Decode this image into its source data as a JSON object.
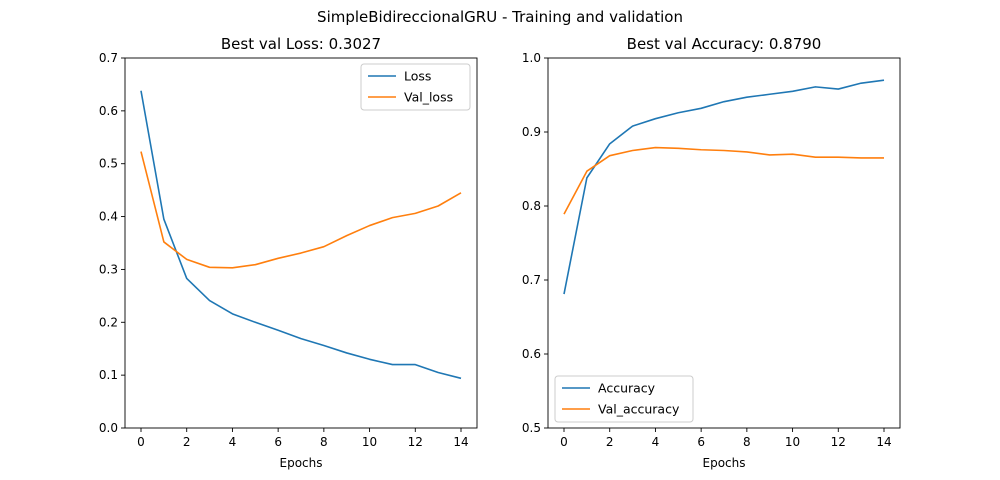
{
  "suptitle": "SimpleBidireccionalGRU - Training and validation",
  "colors": {
    "blue": "#1f77b4",
    "orange": "#ff7f0e"
  },
  "chart_data": [
    {
      "type": "line",
      "title": "Best val Loss: 0.3027",
      "xlabel": "Epochs",
      "ylabel": "",
      "xlim": [
        -0.7,
        14.7
      ],
      "ylim": [
        0.0,
        0.7
      ],
      "xticks": [
        0,
        2,
        4,
        6,
        8,
        10,
        12,
        14
      ],
      "yticks": [
        0.0,
        0.1,
        0.2,
        0.3,
        0.4,
        0.5,
        0.6,
        0.7
      ],
      "ytick_decimals": 1,
      "grid": false,
      "legend_position": "upper right",
      "x": [
        0,
        1,
        2,
        3,
        4,
        5,
        6,
        7,
        8,
        9,
        10,
        11,
        12,
        13,
        14
      ],
      "series": [
        {
          "name": "Loss",
          "color": "#1f77b4",
          "values": [
            0.638,
            0.395,
            0.283,
            0.241,
            0.216,
            0.2,
            0.185,
            0.169,
            0.156,
            0.142,
            0.13,
            0.12,
            0.12,
            0.105,
            0.094
          ]
        },
        {
          "name": "Val_loss",
          "color": "#ff7f0e",
          "values": [
            0.523,
            0.352,
            0.319,
            0.304,
            0.303,
            0.309,
            0.321,
            0.331,
            0.343,
            0.364,
            0.383,
            0.398,
            0.406,
            0.42,
            0.445
          ]
        }
      ]
    },
    {
      "type": "line",
      "title": "Best val Accuracy: 0.8790",
      "xlabel": "Epochs",
      "ylabel": "",
      "xlim": [
        -0.7,
        14.7
      ],
      "ylim": [
        0.5,
        1.0
      ],
      "xticks": [
        0,
        2,
        4,
        6,
        8,
        10,
        12,
        14
      ],
      "yticks": [
        0.5,
        0.6,
        0.7,
        0.8,
        0.9,
        1.0
      ],
      "ytick_decimals": 1,
      "grid": false,
      "legend_position": "lower left",
      "x": [
        0,
        1,
        2,
        3,
        4,
        5,
        6,
        7,
        8,
        9,
        10,
        11,
        12,
        13,
        14
      ],
      "series": [
        {
          "name": "Accuracy",
          "color": "#1f77b4",
          "values": [
            0.681,
            0.838,
            0.884,
            0.908,
            0.918,
            0.926,
            0.932,
            0.941,
            0.947,
            0.951,
            0.955,
            0.961,
            0.958,
            0.966,
            0.97
          ]
        },
        {
          "name": "Val_accuracy",
          "color": "#ff7f0e",
          "values": [
            0.789,
            0.847,
            0.868,
            0.875,
            0.879,
            0.878,
            0.876,
            0.875,
            0.873,
            0.869,
            0.87,
            0.866,
            0.866,
            0.865,
            0.865
          ]
        }
      ]
    }
  ]
}
